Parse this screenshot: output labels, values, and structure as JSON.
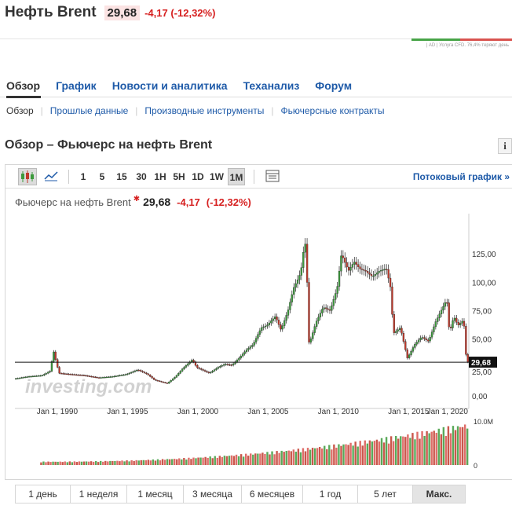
{
  "header": {
    "title": "Нефть Brent",
    "price": "29,68",
    "change": "-4,17 (-12,32%)",
    "ad_text": "| AD | Услуга CFD. 76,4% теряют день"
  },
  "nav": {
    "tabs": [
      "Обзор",
      "График",
      "Новости и аналитика",
      "Теханализ",
      "Форум"
    ]
  },
  "subnav": {
    "items": [
      "Обзор",
      "Прошлые данные",
      "Производные инструменты",
      "Фьючерсные контракты"
    ]
  },
  "page_title": "Обзор – Фьючерс на нефть Brent",
  "info_icon_label": "i",
  "toolbar": {
    "intervals": [
      "1",
      "5",
      "15",
      "30",
      "1H",
      "5H",
      "1D",
      "1W",
      "1M"
    ],
    "selected_interval": "1M",
    "stream_link": "Потоковый график »",
    "icons": [
      "candlestick-icon",
      "line-chart-icon",
      "table-icon"
    ]
  },
  "legend": {
    "name": "Фьючерс на нефть Brent",
    "price": "29,68",
    "change": "-4,17",
    "change_pct": "(-12,32%)"
  },
  "watermark": "investing.com",
  "ranges": [
    "1 день",
    "1 неделя",
    "1 месяц",
    "3 месяца",
    "6 месяцев",
    "1 год",
    "5 лет",
    "Макс."
  ],
  "selected_range": "Макс.",
  "colors": {
    "up": "#3c9a3c",
    "down": "#c0392b",
    "accent": "#1e5aa8",
    "neg": "#d62020"
  },
  "chart_data": {
    "type": "line",
    "price_axis_labels": [
      "125,00",
      "100,00",
      "75,00",
      "50,00",
      "29,68",
      "25,00",
      "0,00"
    ],
    "current_price_label": "29,68",
    "date_labels": [
      "Jan 1, 1990",
      "Jan 1, 1995",
      "Jan 1, 2000",
      "Jan 1, 2005",
      "Jan 1, 2010",
      "Jan 1, 2015",
      "Jan 1, 2020"
    ],
    "volume_axis_labels": [
      "10.0M",
      "0"
    ],
    "ylim": [
      0,
      150
    ],
    "x": [
      1988.0,
      1989.0,
      1990.0,
      1990.6,
      1990.8,
      1991.2,
      1992.0,
      1993.0,
      1994.0,
      1995.0,
      1996.0,
      1996.8,
      1997.5,
      1998.0,
      1998.9,
      1999.5,
      2000.0,
      2000.7,
      2001.0,
      2001.9,
      2002.5,
      2003.0,
      2003.5,
      2004.0,
      2004.5,
      2005.0,
      2005.6,
      2006.0,
      2006.6,
      2007.0,
      2007.5,
      2007.9,
      2008.3,
      2008.5,
      2008.7,
      2008.9,
      2009.0,
      2009.5,
      2010.0,
      2010.5,
      2011.0,
      2011.3,
      2011.8,
      2012.2,
      2012.6,
      2013.0,
      2013.5,
      2014.0,
      2014.5,
      2014.8,
      2015.0,
      2015.5,
      2016.0,
      2016.5,
      2017.0,
      2017.5,
      2018.0,
      2018.8,
      2018.99,
      2019.3,
      2019.6,
      2020.0,
      2020.2
    ],
    "y": [
      15,
      17,
      18,
      22,
      40,
      20,
      19,
      18,
      16,
      17,
      19,
      23,
      19,
      14,
      11,
      17,
      24,
      32,
      25,
      20,
      25,
      28,
      27,
      33,
      40,
      45,
      60,
      62,
      70,
      58,
      75,
      95,
      105,
      115,
      140,
      90,
      45,
      65,
      78,
      75,
      95,
      125,
      110,
      118,
      112,
      110,
      105,
      110,
      112,
      95,
      55,
      60,
      33,
      45,
      52,
      48,
      65,
      85,
      55,
      70,
      62,
      67,
      30
    ],
    "volume_max": 10.0
  }
}
